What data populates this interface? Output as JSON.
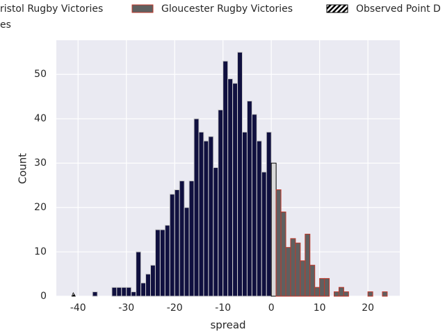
{
  "chart_data": {
    "type": "histogram",
    "xlabel": "spread",
    "ylabel": "Count",
    "xlim": [
      -44.5,
      26.6
    ],
    "ylim": [
      0,
      57.7
    ],
    "xticks": [
      -40,
      -30,
      -20,
      -10,
      0,
      10,
      20
    ],
    "yticks": [
      0,
      10,
      20,
      30,
      40,
      50
    ],
    "grid": true,
    "series": [
      {
        "name": "ristol Rugby Victories",
        "color": "#10103f",
        "edgecolor": "#cccccc",
        "bins": [
          -37,
          -36,
          -35,
          -34,
          -33,
          -32,
          -31,
          -30,
          -29,
          -28,
          -27,
          -26,
          -25,
          -24,
          -23,
          -22,
          -21,
          -20,
          -19,
          -18,
          -17,
          -16,
          -15,
          -14,
          -13,
          -12,
          -11,
          -10,
          -9,
          -8,
          -7,
          -6,
          -5,
          -4,
          -3,
          -2,
          -1,
          0
        ],
        "values": [
          1,
          0,
          0,
          0,
          2,
          2,
          2,
          2,
          1,
          10,
          3,
          5,
          7,
          15,
          15,
          16,
          23,
          24,
          26,
          20,
          26,
          40,
          37,
          35,
          36,
          29,
          42,
          53,
          49,
          48,
          55,
          37,
          44,
          41,
          35,
          28,
          37
        ]
      },
      {
        "name": "es",
        "color": "#d9d9d9",
        "edgecolor": "#000000",
        "bins": [
          0,
          1
        ],
        "values": [
          30
        ]
      },
      {
        "name": "Gloucester Rugby Victories",
        "color": "#5f6060",
        "edgecolor": "#c0392b",
        "bins": [
          1,
          2,
          3,
          4,
          5,
          6,
          7,
          8,
          9,
          10,
          11,
          12,
          13,
          14,
          15,
          16,
          17,
          18,
          19,
          20,
          21,
          22,
          23,
          24
        ],
        "values": [
          24,
          19,
          11,
          13,
          12,
          8,
          14,
          7,
          2,
          4,
          4,
          0,
          1,
          2,
          1,
          0,
          0,
          0,
          0,
          1,
          0,
          0,
          1
        ]
      }
    ],
    "observed": {
      "name": "Observed Point D",
      "x": -41
    }
  }
}
